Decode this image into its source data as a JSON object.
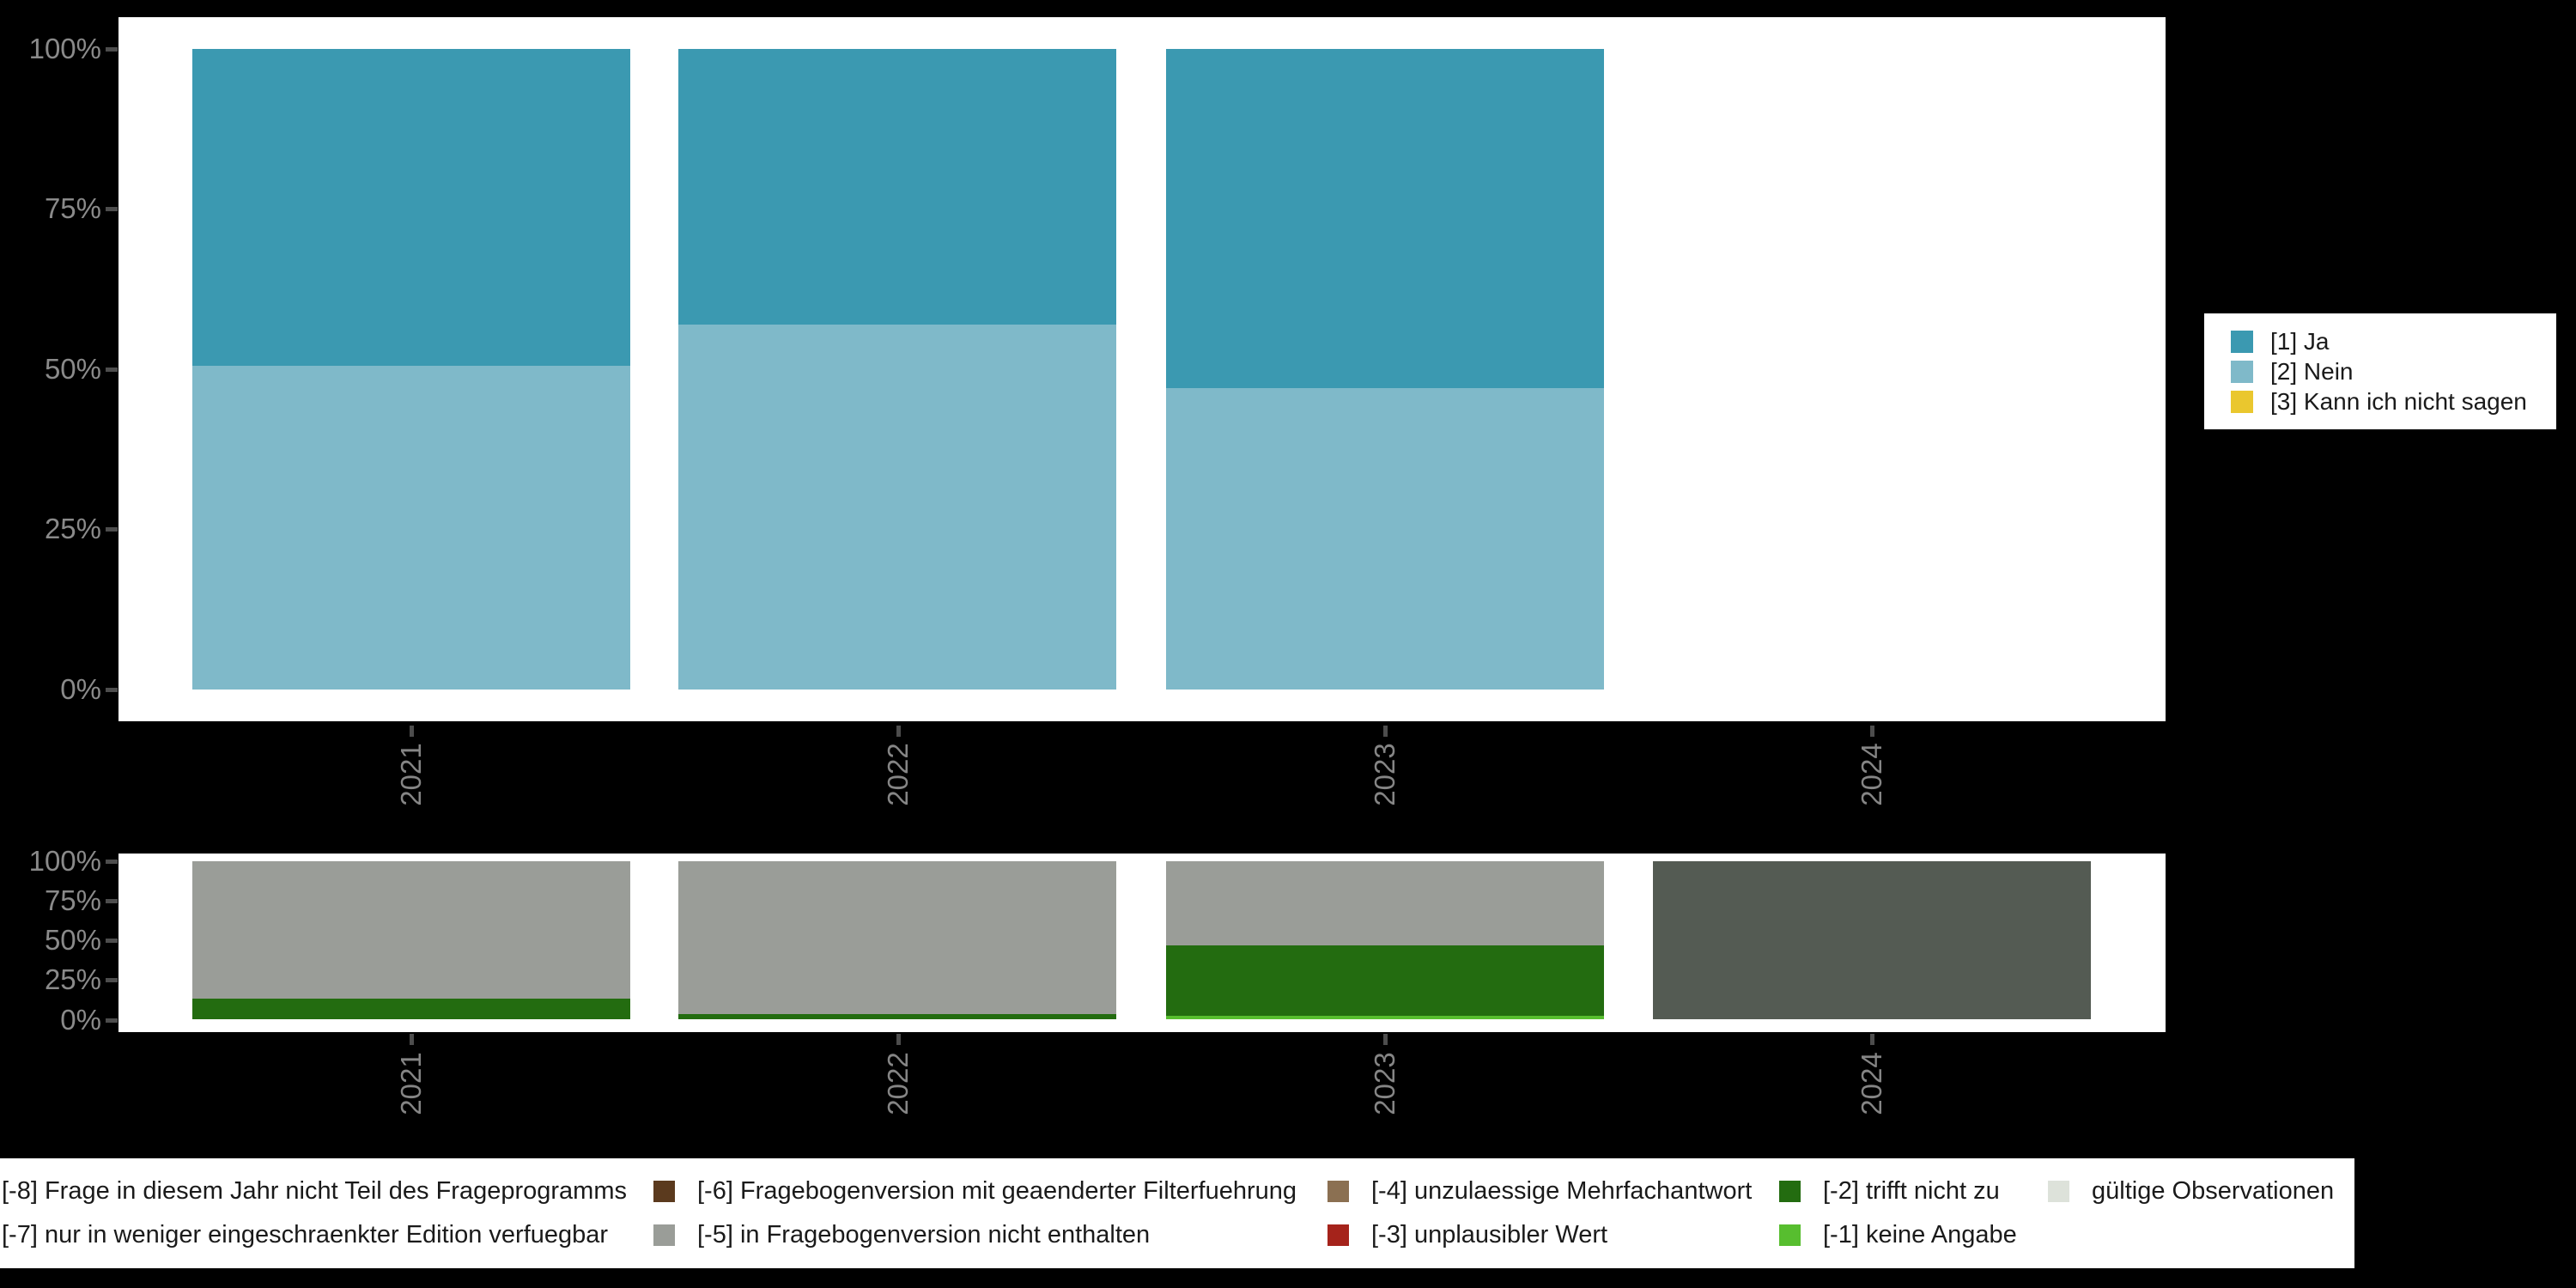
{
  "colors": {
    "background": "#000000",
    "plot_background": "#FFFFFF",
    "axis_text": "#8A8A8A",
    "tick_mark": "#4D4D4D",
    "legend_text": "#1A1A1A",
    "ja": "#3B99B1",
    "nein": "#7FB9C9",
    "kann_ich_nicht_sagen": "#EAC72E",
    "missing_8": "#545B53",
    "missing_6": "#5B3A1E",
    "missing_5": "#9A9D98",
    "missing_4": "#8B7052",
    "missing_3": "#A5231B",
    "missing_2": "#236C10",
    "missing_1": "#57BE2F",
    "valid_observations": "#DDE2DA"
  },
  "top_chart": {
    "y_tick_labels": [
      "100%",
      "75%",
      "50%",
      "25%",
      "0%"
    ],
    "x_tick_labels": [
      "2021",
      "2022",
      "2023",
      "2024"
    ],
    "legend": {
      "items": [
        {
          "label": "[1] Ja",
          "color": "#3B99B1"
        },
        {
          "label": "[2] Nein",
          "color": "#7FB9C9"
        },
        {
          "label": "[3] Kann ich nicht sagen",
          "color": "#EAC72E"
        }
      ]
    }
  },
  "bottom_chart": {
    "y_tick_labels": [
      "100%",
      "75%",
      "50%",
      "25%",
      "0%"
    ],
    "x_tick_labels": [
      "2021",
      "2022",
      "2023",
      "2024"
    ]
  },
  "missing_legend": {
    "rows": [
      {
        "items": [
          {
            "label": "[-8] Frage in diesem Jahr nicht Teil des Frageprogramms",
            "color": null,
            "col": 1
          },
          {
            "label": "[-6] Fragebogenversion mit geaenderter Filterfuehrung",
            "color": "#5B3A1E",
            "col": 2
          },
          {
            "label": "[-4] unzulaessige Mehrfachantwort",
            "color": "#8B7052",
            "col": 3
          },
          {
            "label": "[-2] trifft nicht zu",
            "color": "#236C10",
            "col": 4
          },
          {
            "label": "gültige Observationen",
            "color": "#DDE2DA",
            "col": 5
          }
        ]
      },
      {
        "items": [
          {
            "label": "[-7] nur in weniger eingeschraenkter Edition verfuegbar",
            "color": null,
            "col": 1
          },
          {
            "label": "[-5] in Fragebogenversion nicht enthalten",
            "color": "#9A9D98",
            "col": 2
          },
          {
            "label": "[-3] unplausibler Wert",
            "color": "#A5231B",
            "col": 3
          },
          {
            "label": "[-1] keine Angabe",
            "color": "#57BE2F",
            "col": 4
          }
        ]
      }
    ]
  },
  "chart_data": [
    {
      "id": "responses-by-year",
      "type": "bar",
      "stacked": true,
      "unit": "percent",
      "categories": [
        "2021",
        "2022",
        "2023",
        "2024"
      ],
      "series": [
        {
          "name": "[1] Ja",
          "color": "#3B99B1",
          "values": [
            49.5,
            43,
            53,
            null
          ]
        },
        {
          "name": "[2] Nein",
          "color": "#7FB9C9",
          "values": [
            50.5,
            57,
            47,
            null
          ]
        },
        {
          "name": "[3] Kann ich nicht sagen",
          "color": "#EAC72E",
          "values": [
            0,
            0,
            0,
            null
          ]
        }
      ],
      "title": "",
      "xlabel": "",
      "ylabel": "",
      "ylim": [
        0,
        100
      ],
      "y_ticks": [
        "0%",
        "25%",
        "50%",
        "75%",
        "100%"
      ],
      "grid": false,
      "legend_position": "right"
    },
    {
      "id": "missing-values-by-year",
      "type": "bar",
      "stacked": true,
      "unit": "percent",
      "categories": [
        "2021",
        "2022",
        "2023",
        "2024"
      ],
      "series": [
        {
          "name": "[-5] in Fragebogenversion nicht enthalten",
          "color": "#9A9D98",
          "values": [
            87,
            97,
            53,
            0
          ]
        },
        {
          "name": "[-2] trifft nicht zu",
          "color": "#236C10",
          "values": [
            13,
            3,
            45,
            0
          ]
        },
        {
          "name": "[-1] keine Angabe",
          "color": "#57BE2F",
          "values": [
            0,
            0,
            2,
            0
          ]
        },
        {
          "name": "[-8] Frage in diesem Jahr nicht Teil des Frageprogramms",
          "color": "#545B53",
          "values": [
            0,
            0,
            0,
            100
          ]
        }
      ],
      "title": "",
      "xlabel": "",
      "ylabel": "",
      "ylim": [
        0,
        100
      ],
      "y_ticks": [
        "0%",
        "25%",
        "50%",
        "75%",
        "100%"
      ],
      "grid": false,
      "legend_position": "bottom"
    }
  ]
}
